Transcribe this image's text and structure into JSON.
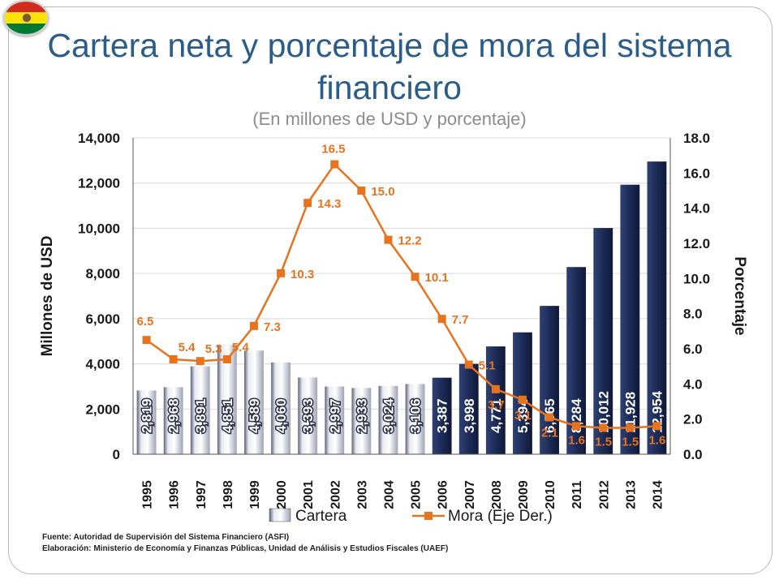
{
  "slide": {
    "title": "Cartera neta y porcentaje de mora del sistema financiero",
    "subtitle": "(En millones de USD y porcentaje)"
  },
  "flag": {
    "colors": [
      "#d52b1e",
      "#f9e300",
      "#007934"
    ]
  },
  "chart_data": {
    "type": "bar",
    "categories": [
      "1995",
      "1996",
      "1997",
      "1998",
      "1999",
      "2000",
      "2001",
      "2002",
      "2003",
      "2004",
      "2005",
      "2006",
      "2007",
      "2008",
      "2009",
      "2010",
      "2011",
      "2012",
      "2013",
      "2014"
    ],
    "series": [
      {
        "name": "Cartera",
        "axis": "left",
        "values": [
          2819,
          2968,
          3891,
          4851,
          4589,
          4060,
          3393,
          2997,
          2933,
          3024,
          3106,
          3387,
          3998,
          4771,
          5394,
          6565,
          8284,
          10012,
          11928,
          12954
        ],
        "labels": [
          "2,819",
          "2,968",
          "3,891",
          "4,851",
          "4,589",
          "4,060",
          "3,393",
          "2,997",
          "2,933",
          "3,024",
          "3,106",
          "3,387",
          "3,998",
          "4,771",
          "5,394",
          "6,565",
          "8,284",
          "10,012",
          "11,928",
          "12,954"
        ],
        "colors": {
          "light": "#c9ccd6",
          "dark": "#1c2b57"
        }
      },
      {
        "name": "Mora (Eje Der.)",
        "type": "line",
        "axis": "right",
        "values": [
          6.5,
          5.4,
          5.3,
          5.4,
          7.3,
          10.3,
          14.3,
          16.5,
          15.0,
          12.2,
          10.1,
          7.7,
          5.1,
          3.7,
          3.1,
          2.1,
          1.6,
          1.5,
          1.5,
          1.6
        ],
        "labels": [
          "6.5",
          "5.4",
          "5.3",
          "5.4",
          "7.3",
          "10.3",
          "14.3",
          "16.5",
          "15.0",
          "12.2",
          "10.1",
          "7.7",
          "5.1",
          "3.7",
          "3.1",
          "2.1",
          "1.6",
          "1.5",
          "1.5",
          "1.6"
        ],
        "color": "#e8731e"
      }
    ],
    "ylabel": "Millones de USD",
    "ylabel_right": "Porcentaje",
    "ylim": [
      0,
      14000
    ],
    "ylim_right": [
      0,
      18
    ],
    "yticks": [
      "0",
      "2,000",
      "4,000",
      "6,000",
      "8,000",
      "10,000",
      "12,000",
      "14,000"
    ],
    "yticks_right": [
      "0.0",
      "2.0",
      "4.0",
      "6.0",
      "8.0",
      "10.0",
      "12.0",
      "14.0",
      "16.0",
      "18.0"
    ],
    "grid": true,
    "legend_position": "bottom"
  },
  "source": {
    "line1": "Fuente: Autoridad de Supervisión del Sistema Financiero (ASFI)",
    "line2": "Elaboración: Ministerio de Economía y Finanzas Públicas, Unidad de Análisis y Estudios Fiscales (UAEF)"
  }
}
